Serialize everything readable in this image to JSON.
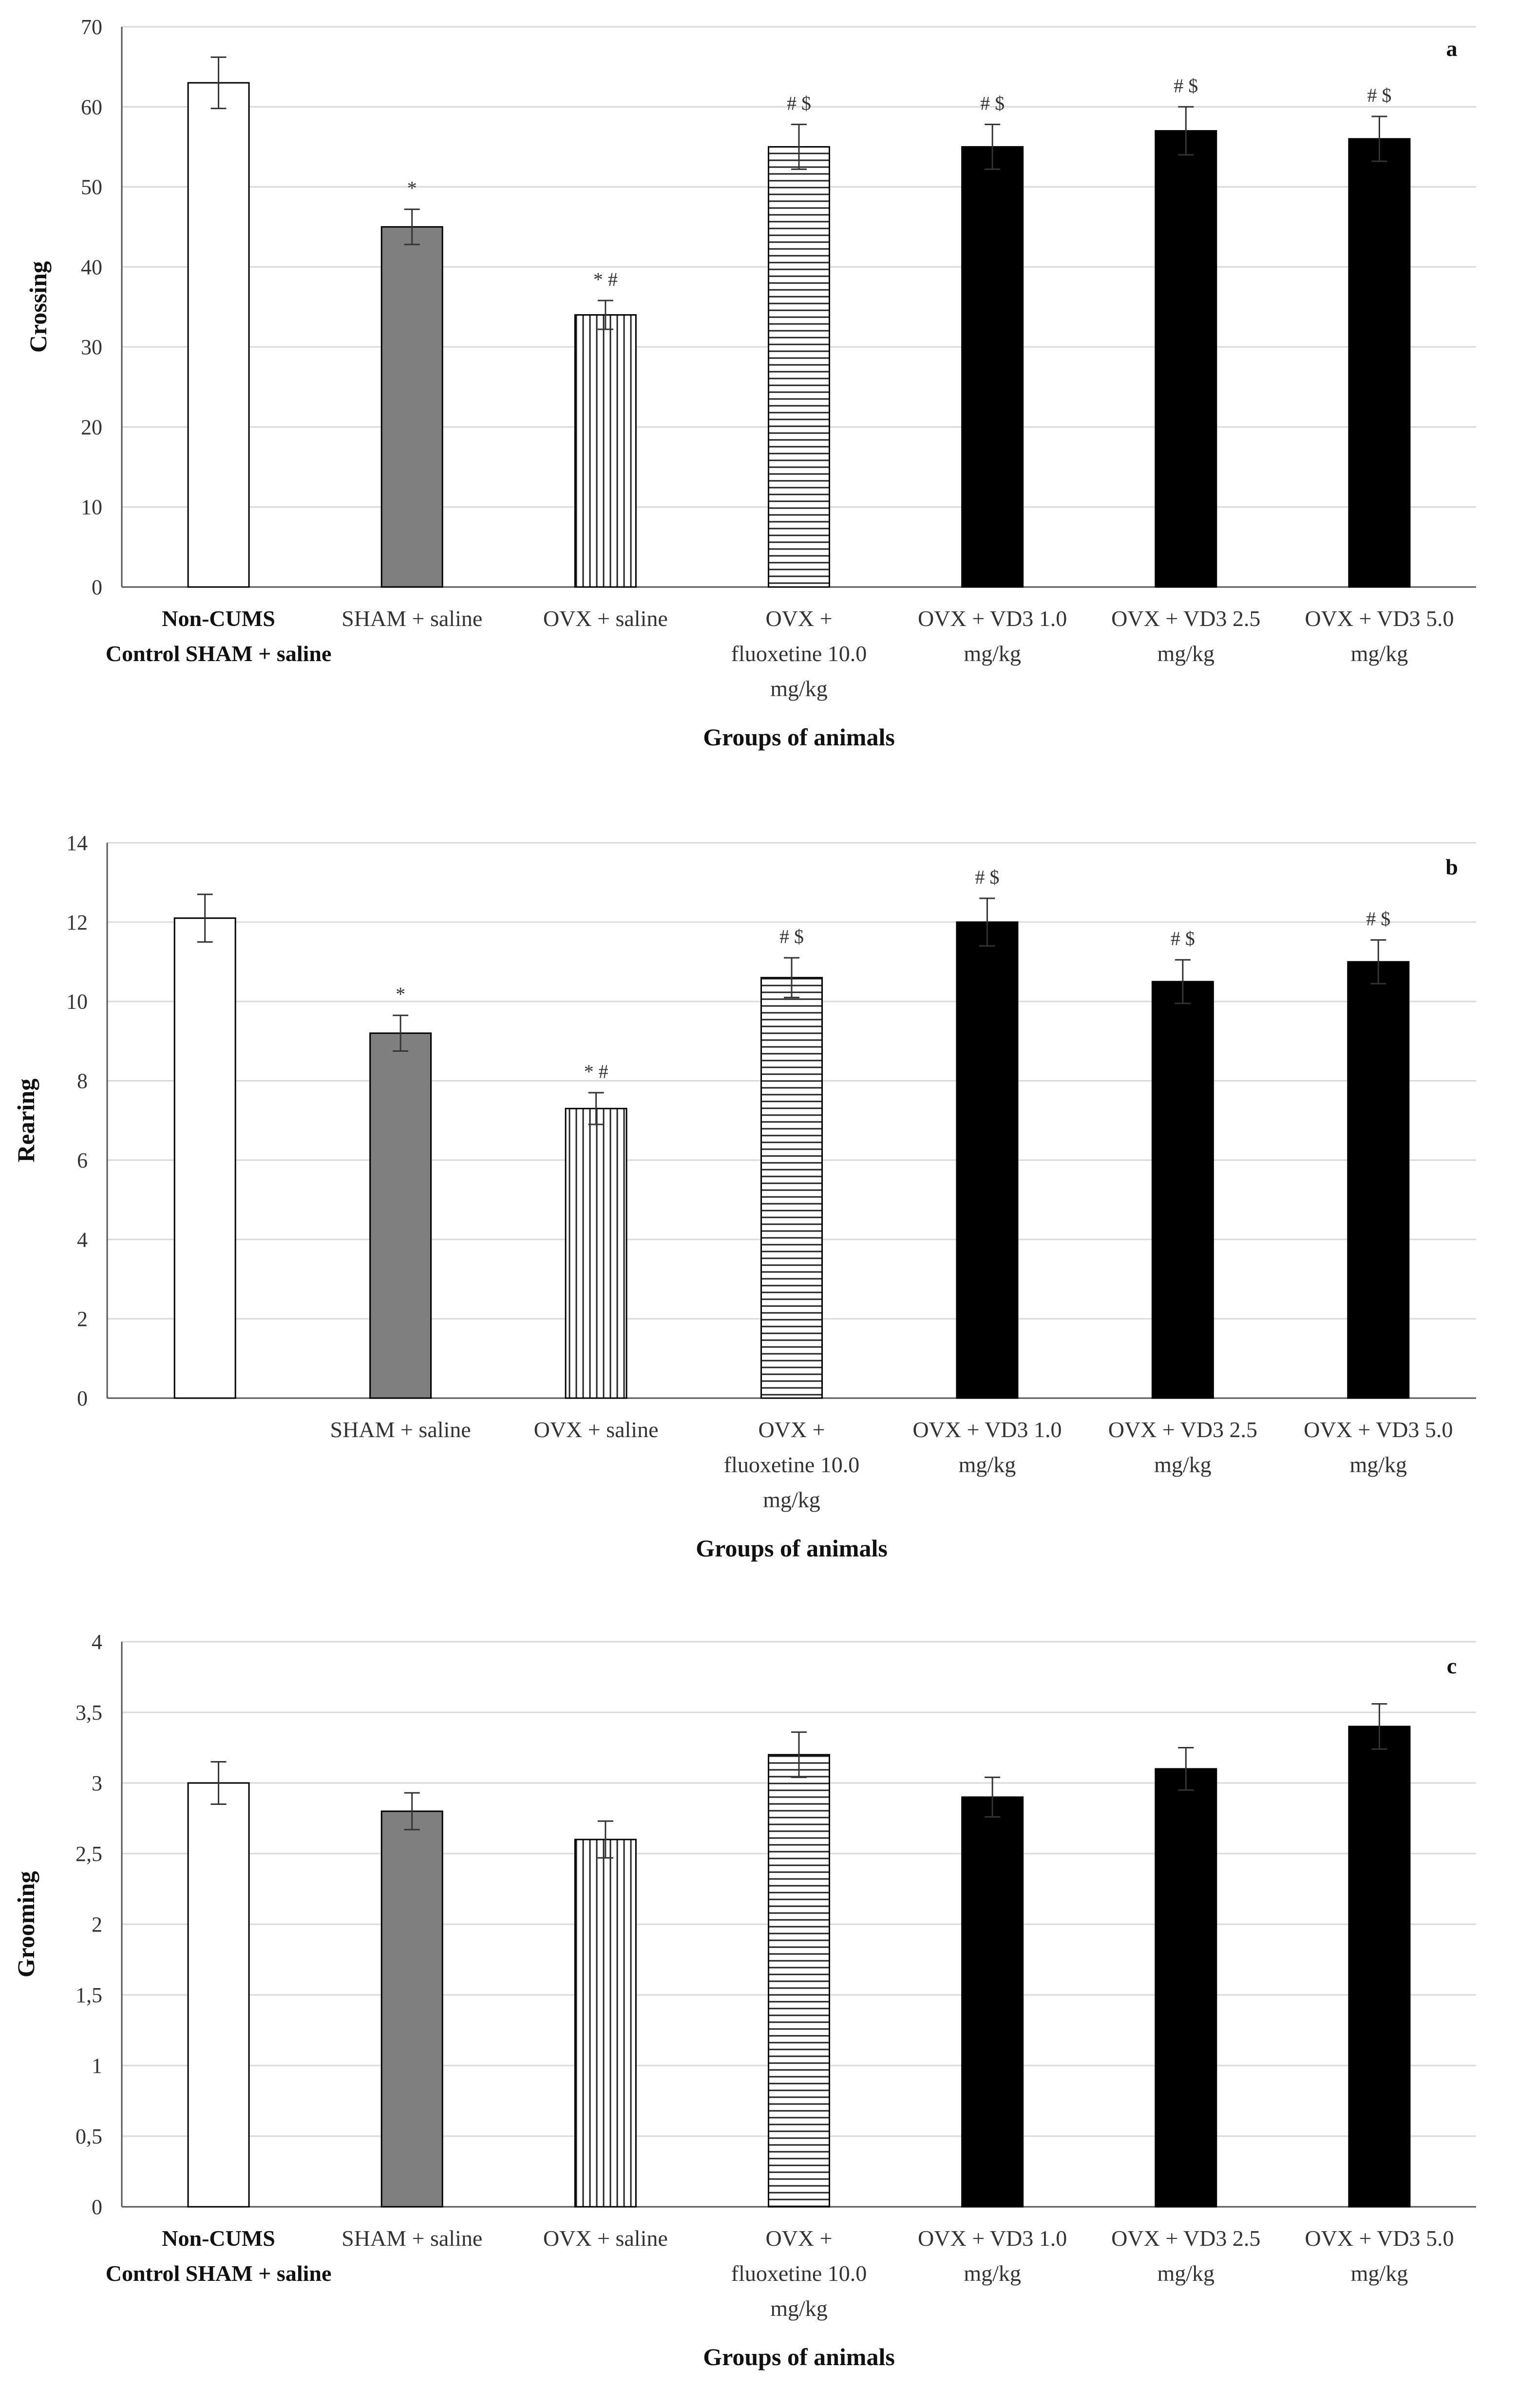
{
  "figure": {
    "colors": {
      "white_bar": "#ffffff",
      "gray_bar": "#7f7f7f",
      "black_bar": "#000000",
      "bar_border": "#000000",
      "pattern_line": "#222222"
    },
    "fills": [
      "white",
      "gray",
      "vertical-stripes",
      "horizontal-stripes",
      "black",
      "black",
      "black"
    ]
  },
  "chart_data": [
    {
      "type": "bar",
      "panel_letter": "a",
      "ylabel": "Crossing",
      "xlabel": "Groups of animals",
      "ylim": [
        0,
        70
      ],
      "yticks": [
        "0",
        "10",
        "20",
        "30",
        "40",
        "50",
        "60",
        "70"
      ],
      "grid": true,
      "categories": [
        [
          "Non-CUMS",
          "Control SHAM + saline"
        ],
        [
          "SHAM +  saline"
        ],
        [
          "OVX + saline"
        ],
        [
          "OVX +",
          "fluoxetine 10.0",
          "mg/kg"
        ],
        [
          "OVX + VD3 1.0",
          "mg/kg"
        ],
        [
          "OVX + VD3 2.5",
          "mg/kg"
        ],
        [
          "OVX + VD3 5.0",
          "mg/kg"
        ]
      ],
      "first_category_bold": true,
      "values": [
        63,
        45,
        34,
        55,
        55,
        57,
        56
      ],
      "errors": [
        3.2,
        2.2,
        1.8,
        2.8,
        2.8,
        3.0,
        2.8
      ],
      "annotations": [
        "",
        "*",
        "* #",
        "# $",
        "# $",
        "# $",
        "# $"
      ]
    },
    {
      "type": "bar",
      "panel_letter": "b",
      "ylabel": "Rearing",
      "xlabel": "Groups of animals",
      "ylim": [
        0,
        14
      ],
      "yticks": [
        "0",
        "2",
        "4",
        "6",
        "8",
        "10",
        "12",
        "14"
      ],
      "grid": true,
      "categories": [
        [],
        [
          "SHAM +  saline"
        ],
        [
          "OVX + saline"
        ],
        [
          "OVX +",
          "fluoxetine 10.0",
          "mg/kg"
        ],
        [
          "OVX + VD3 1.0",
          "mg/kg"
        ],
        [
          "OVX + VD3 2.5",
          "mg/kg"
        ],
        [
          "OVX + VD3 5.0",
          "mg/kg"
        ]
      ],
      "first_category_bold": false,
      "values": [
        12.1,
        9.2,
        7.3,
        10.6,
        12.0,
        10.5,
        11.0
      ],
      "errors": [
        0.6,
        0.45,
        0.4,
        0.5,
        0.6,
        0.55,
        0.55
      ],
      "annotations": [
        "",
        "*",
        "* #",
        "# $",
        "# $",
        "# $",
        "# $"
      ]
    },
    {
      "type": "bar",
      "panel_letter": "c",
      "ylabel": "Grooming",
      "xlabel": "Groups of animals",
      "ylim": [
        0,
        4
      ],
      "yticks": [
        "0",
        "0,5",
        "1",
        "1,5",
        "2",
        "2,5",
        "3",
        "3,5",
        "4"
      ],
      "grid": true,
      "categories": [
        [
          "Non-CUMS",
          "Control SHAM + saline"
        ],
        [
          "SHAM +  saline"
        ],
        [
          "OVX + saline"
        ],
        [
          "OVX +",
          "fluoxetine 10.0",
          "mg/kg"
        ],
        [
          "OVX + VD3 1.0",
          "mg/kg"
        ],
        [
          "OVX + VD3 2.5",
          "mg/kg"
        ],
        [
          "OVX + VD3 5.0",
          "mg/kg"
        ]
      ],
      "first_category_bold": true,
      "values": [
        3.0,
        2.8,
        2.6,
        3.2,
        2.9,
        3.1,
        3.4
      ],
      "errors": [
        0.15,
        0.13,
        0.13,
        0.16,
        0.14,
        0.15,
        0.16
      ],
      "annotations": [
        "",
        "",
        "",
        "",
        "",
        "",
        ""
      ]
    }
  ]
}
